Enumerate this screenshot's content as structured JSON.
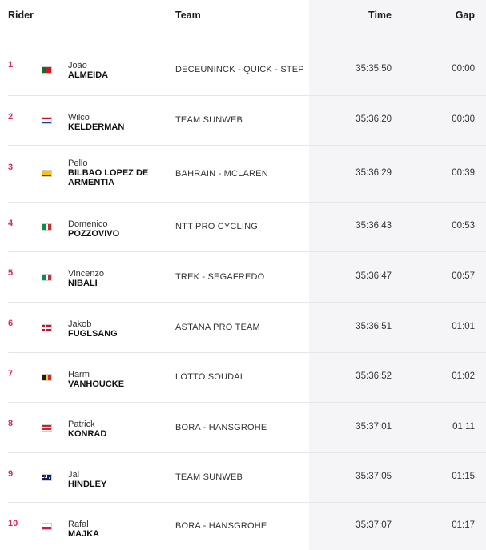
{
  "header": {
    "rider": "Rider",
    "team": "Team",
    "time": "Time",
    "gap": "Gap"
  },
  "rows": [
    {
      "rank": "1",
      "first": "João",
      "last": "ALMEIDA",
      "team": "DECEUNINCK - QUICK - STEP",
      "time": "35:35:50",
      "gap": "00:00",
      "flag": "portugal-flag"
    },
    {
      "rank": "2",
      "first": "Wilco",
      "last": "KELDERMAN",
      "team": "TEAM SUNWEB",
      "time": "35:36:20",
      "gap": "00:30",
      "flag": "netherlands-flag"
    },
    {
      "rank": "3",
      "first": "Pello",
      "last": "BILBAO LOPEZ DE ARMENTIA",
      "team": "BAHRAIN - MCLAREN",
      "time": "35:36:29",
      "gap": "00:39",
      "flag": "spain-flag"
    },
    {
      "rank": "4",
      "first": "Domenico",
      "last": "POZZOVIVO",
      "team": "NTT PRO CYCLING",
      "time": "35:36:43",
      "gap": "00:53",
      "flag": "italy-flag"
    },
    {
      "rank": "5",
      "first": "Vincenzo",
      "last": "NIBALI",
      "team": "TREK - SEGAFREDO",
      "time": "35:36:47",
      "gap": "00:57",
      "flag": "italy-flag"
    },
    {
      "rank": "6",
      "first": "Jakob",
      "last": "FUGLSANG",
      "team": "ASTANA PRO TEAM",
      "time": "35:36:51",
      "gap": "01:01",
      "flag": "denmark-flag"
    },
    {
      "rank": "7",
      "first": "Harm",
      "last": "VANHOUCKE",
      "team": "LOTTO SOUDAL",
      "time": "35:36:52",
      "gap": "01:02",
      "flag": "belgium-flag"
    },
    {
      "rank": "8",
      "first": "Patrick",
      "last": "KONRAD",
      "team": "BORA - HANSGROHE",
      "time": "35:37:01",
      "gap": "01:11",
      "flag": "austria-flag"
    },
    {
      "rank": "9",
      "first": "Jai",
      "last": "HINDLEY",
      "team": "TEAM SUNWEB",
      "time": "35:37:05",
      "gap": "01:15",
      "flag": "australia-flag"
    },
    {
      "rank": "10",
      "first": "Rafal",
      "last": "MAJKA",
      "team": "BORA - HANSGROHE",
      "time": "35:37:07",
      "gap": "01:17",
      "flag": "poland-flag"
    }
  ],
  "colors": {
    "rank": "#e0245e",
    "time_column_bg": "#f5f5f7",
    "divider": "#e6e6ea"
  }
}
